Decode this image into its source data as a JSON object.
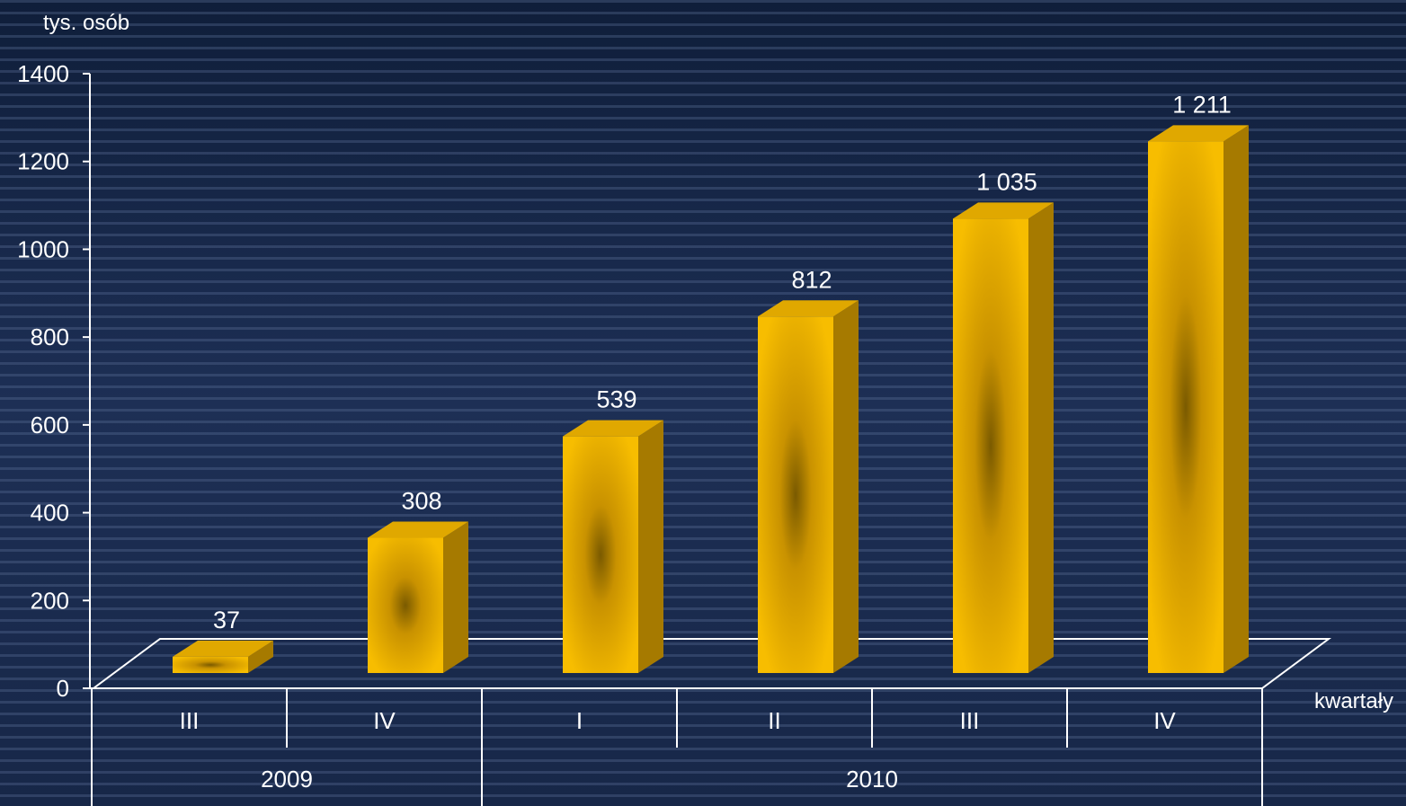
{
  "chart_data": {
    "type": "bar",
    "y_unit_label": "tys. osób",
    "x_axis_label": "kwartały",
    "ylim": [
      0,
      1400
    ],
    "yticks": [
      0,
      200,
      400,
      600,
      800,
      1000,
      1200,
      1400
    ],
    "categories": [
      "III",
      "IV",
      "I",
      "II",
      "III",
      "IV"
    ],
    "groups": [
      {
        "label": "2009",
        "categories": [
          "III",
          "IV"
        ]
      },
      {
        "label": "2010",
        "categories": [
          "I",
          "II",
          "III",
          "IV"
        ]
      }
    ],
    "values": [
      37,
      308,
      539,
      812,
      1035,
      1211
    ],
    "value_labels": [
      "37",
      "308",
      "539",
      "812",
      "1 035",
      "1 211"
    ],
    "bar_color": "#f5b800",
    "background_color": "#1a2a4a",
    "text_color": "#ffffff"
  }
}
